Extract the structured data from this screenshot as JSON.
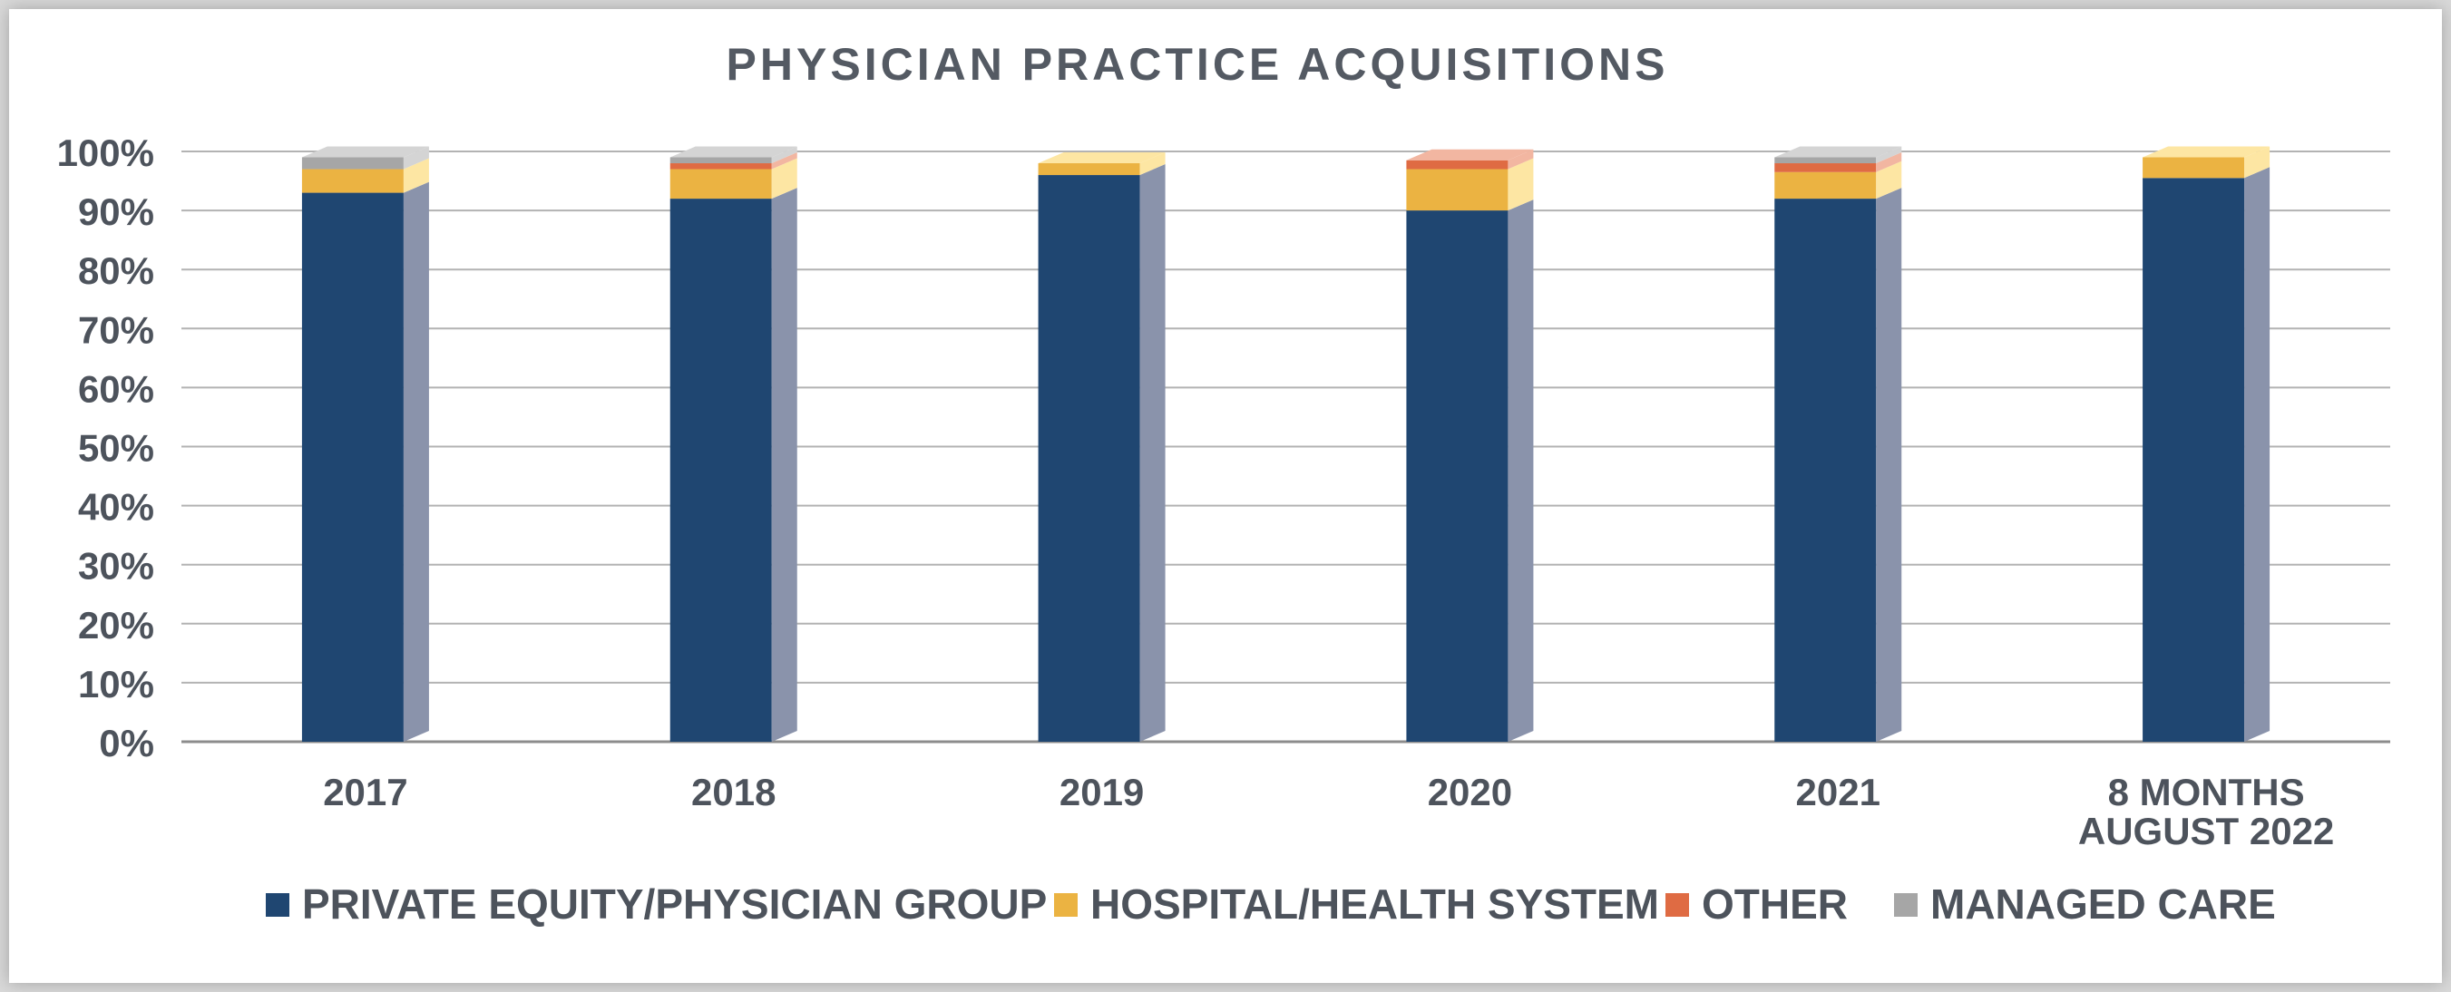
{
  "chart_data": {
    "type": "bar",
    "stacked": true,
    "title": "PHYSICIAN PRACTICE ACQUISITIONS",
    "categories": [
      "2017",
      "2018",
      "2019",
      "2020",
      "2021",
      "8 MONTHS\nAUGUST 2022"
    ],
    "series": [
      {
        "name": "PRIVATE EQUITY/PHYSICIAN GROUP",
        "color": "#1f4671",
        "side_color": "#8a93ab",
        "values": [
          93,
          92,
          96,
          90,
          92,
          95.5
        ]
      },
      {
        "name": "HOSPITAL/HEALTH SYSTEM",
        "color": "#ebb342",
        "side_color": "#fde6a3",
        "values": [
          4,
          5,
          2,
          7,
          4.5,
          3.5
        ]
      },
      {
        "name": "OTHER",
        "color": "#df6b43",
        "side_color": "#f2b6a1",
        "values": [
          0,
          1,
          0,
          1.5,
          1.5,
          0
        ]
      },
      {
        "name": "MANAGED CARE",
        "color": "#a6a6a6",
        "side_color": "#d4d4d4",
        "values": [
          2,
          1,
          0,
          0,
          1,
          0
        ]
      }
    ],
    "yticks": [
      "0%",
      "10%",
      "20%",
      "30%",
      "40%",
      "50%",
      "60%",
      "70%",
      "80%",
      "90%",
      "100%"
    ],
    "ylim": [
      0,
      100
    ],
    "grid": true,
    "legend_position": "bottom"
  }
}
